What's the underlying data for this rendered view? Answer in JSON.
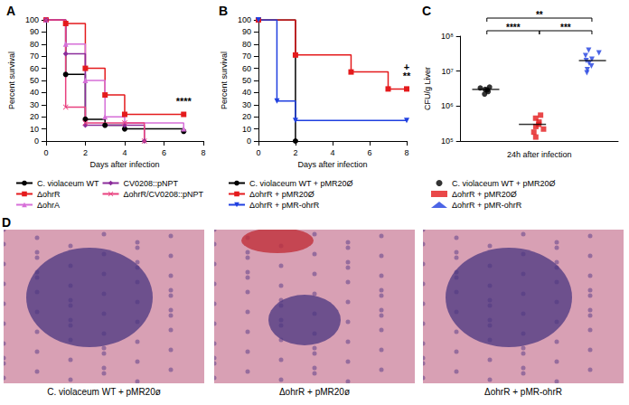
{
  "chart_data": [
    {
      "type": "line",
      "title": "A",
      "xlabel": "Days after infection",
      "ylabel": "Percent survival",
      "xlim": [
        0,
        8
      ],
      "xticks": [
        0,
        2,
        4,
        6,
        8
      ],
      "ylim": [
        0,
        100
      ],
      "yticks": [
        0,
        10,
        20,
        30,
        40,
        50,
        60,
        70,
        80,
        90,
        100
      ],
      "grid": false,
      "legend": "bottom",
      "series": [
        {
          "name": "C. violaceum WT",
          "color": "#000000",
          "marker": "circle",
          "x": [
            0,
            1,
            2,
            3,
            4,
            7
          ],
          "values": [
            100,
            55,
            18,
            13,
            10,
            8
          ]
        },
        {
          "name": "ΔohrR",
          "color": "#e41a1c",
          "marker": "square",
          "x": [
            0,
            1,
            2,
            3,
            4,
            7
          ],
          "values": [
            100,
            97,
            60,
            38,
            22,
            22
          ]
        },
        {
          "name": "ΔohrA",
          "color": "#d66fd8",
          "marker": "triangle",
          "x": [
            0,
            1,
            2,
            3,
            4,
            7
          ],
          "values": [
            100,
            80,
            50,
            20,
            15,
            10
          ]
        },
        {
          "name": "CV0208::pNPT",
          "color": "#8b2c9a",
          "marker": "diamond",
          "x": [
            0,
            1,
            2,
            4,
            5
          ],
          "values": [
            100,
            72,
            13,
            13,
            0
          ]
        },
        {
          "name": "ΔohrR/CV0208::pNPT",
          "color": "#e8407e",
          "marker": "cross",
          "x": [
            0,
            1,
            2,
            4,
            5
          ],
          "values": [
            100,
            28,
            15,
            15,
            0
          ]
        }
      ],
      "annotations": [
        {
          "text": "****",
          "series": "ΔohrR"
        }
      ]
    },
    {
      "type": "line",
      "title": "B",
      "xlabel": "Days after infection",
      "ylabel": "Percent survival",
      "xlim": [
        0,
        8
      ],
      "xticks": [
        0,
        2,
        4,
        6,
        8
      ],
      "ylim": [
        0,
        100
      ],
      "yticks": [
        0,
        10,
        20,
        30,
        40,
        50,
        60,
        70,
        80,
        90,
        100
      ],
      "grid": false,
      "legend": "bottom",
      "series": [
        {
          "name": "C. violaceum WT + pMR20Ø",
          "color": "#000000",
          "marker": "circle",
          "x": [
            0,
            2
          ],
          "values": [
            100,
            0
          ]
        },
        {
          "name": "ΔohrR + pMR20Ø",
          "color": "#e41a1c",
          "marker": "square",
          "x": [
            0,
            2,
            5,
            7,
            8
          ],
          "values": [
            100,
            71,
            57,
            43,
            43
          ]
        },
        {
          "name": "ΔohrR + pMR-ohrR",
          "color": "#1f3fe0",
          "marker": "triangle-down",
          "x": [
            0,
            1,
            2,
            8
          ],
          "values": [
            100,
            33,
            17,
            17
          ]
        }
      ],
      "annotations": [
        {
          "text": "+",
          "series": "ΔohrR + pMR20Ø"
        },
        {
          "text": "**",
          "series": "ΔohrR + pMR20Ø"
        }
      ]
    },
    {
      "type": "scatter",
      "title": "C",
      "xlabel": "24h after infection",
      "ylabel": "CFU/g Liver",
      "ylim": [
        100000,
        100000000
      ],
      "yticks": [
        {
          "value": 100000,
          "label": "10⁵"
        },
        {
          "value": 1000000,
          "label": "10⁶"
        },
        {
          "value": 10000000,
          "label": "10⁷"
        },
        {
          "value": 100000000,
          "label": "10⁸"
        }
      ],
      "log": "y",
      "grid": false,
      "legend": "bottom",
      "tick_labels": "y",
      "series": [
        {
          "name": "C. violaceum WT + pMR20Ø",
          "color": "#000000",
          "marker": "circle",
          "values": [
            3500000,
            2600000,
            3000000,
            3300000,
            2200000,
            2900000
          ],
          "mean": 3000000
        },
        {
          "name": "ΔohrR + pMR20Ø",
          "color": "#e41a1c",
          "marker": "square",
          "values": [
            550000,
            450000,
            350000,
            300000,
            260000,
            220000,
            180000,
            130000
          ],
          "mean": 300000
        },
        {
          "name": "ΔohrR + pMR-ohrR",
          "color": "#1f3fe0",
          "marker": "triangle-down",
          "values": [
            40000000,
            33000000,
            28000000,
            22000000,
            20000000,
            17000000,
            14000000,
            11000000,
            9000000
          ],
          "mean": 20000000
        }
      ],
      "comparisons": [
        {
          "groups": [
            "C. violaceum WT + pMR20Ø",
            "ΔohrR + pMR-ohrR"
          ],
          "label": "**"
        },
        {
          "groups": [
            "C. violaceum WT + pMR20Ø",
            "ΔohrR + pMR20Ø"
          ],
          "label": "****"
        },
        {
          "groups": [
            "ΔohrR + pMR20Ø",
            "ΔohrR + pMR-ohrR"
          ],
          "label": "***"
        }
      ]
    }
  ],
  "panel_d": {
    "title": "D",
    "captions": [
      "C. violaceum WT + pMR20ø",
      "ΔohrR + pMR20ø",
      "ΔohrR + pMR-ohrR"
    ]
  }
}
